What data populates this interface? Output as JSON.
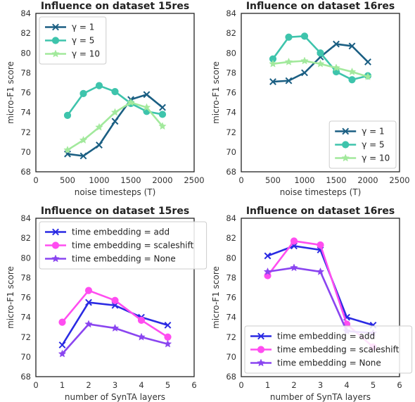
{
  "chart_data": [
    {
      "type": "line",
      "title": "Influence on dataset 15res",
      "xlabel": "noise timesteps (T)",
      "ylabel": "micro-F1 score",
      "xlim": [
        0,
        2500
      ],
      "ylim": [
        68,
        84
      ],
      "xticks": [
        0,
        500,
        1000,
        1500,
        2000,
        2500
      ],
      "yticks": [
        68,
        70,
        72,
        74,
        76,
        78,
        80,
        82,
        84
      ],
      "legend_position": "upper left",
      "grid": false,
      "series": [
        {
          "name": "γ = 1",
          "color": "#1b5f83",
          "marker": "x",
          "x": [
            500,
            750,
            1000,
            1250,
            1500,
            1750,
            2000
          ],
          "y": [
            69.8,
            69.6,
            70.7,
            73.1,
            75.3,
            75.8,
            74.5
          ]
        },
        {
          "name": "γ = 5",
          "color": "#3ec4ac",
          "marker": "o",
          "x": [
            500,
            750,
            1000,
            1250,
            1500,
            1750,
            2000
          ],
          "y": [
            73.7,
            75.9,
            76.7,
            76.1,
            74.9,
            74.1,
            73.8
          ]
        },
        {
          "name": "γ = 10",
          "color": "#a2e99c",
          "marker": "star",
          "x": [
            500,
            750,
            1000,
            1250,
            1500,
            1750,
            2000
          ],
          "y": [
            70.2,
            71.2,
            72.5,
            74.0,
            75.0,
            74.5,
            72.6
          ]
        }
      ]
    },
    {
      "type": "line",
      "title": "Influence on dataset 16res",
      "xlabel": "noise timesteps (T)",
      "ylabel": "micro-F1 score",
      "xlim": [
        0,
        2500
      ],
      "ylim": [
        68,
        84
      ],
      "xticks": [
        0,
        500,
        1000,
        1500,
        2000,
        2500
      ],
      "yticks": [
        68,
        70,
        72,
        74,
        76,
        78,
        80,
        82,
        84
      ],
      "legend_position": "lower right",
      "grid": false,
      "series": [
        {
          "name": "γ = 1",
          "color": "#1b5f83",
          "marker": "x",
          "x": [
            500,
            750,
            1000,
            1250,
            1500,
            1750,
            2000
          ],
          "y": [
            77.1,
            77.2,
            78.0,
            79.6,
            80.9,
            80.7,
            79.1
          ]
        },
        {
          "name": "γ = 5",
          "color": "#3ec4ac",
          "marker": "o",
          "x": [
            500,
            750,
            1000,
            1250,
            1500,
            1750,
            2000
          ],
          "y": [
            79.4,
            81.6,
            81.7,
            80.0,
            78.1,
            77.3,
            77.7
          ]
        },
        {
          "name": "γ = 10",
          "color": "#a2e99c",
          "marker": "star",
          "x": [
            500,
            750,
            1000,
            1250,
            1500,
            1750,
            2000
          ],
          "y": [
            78.9,
            79.1,
            79.2,
            78.9,
            78.5,
            78.1,
            77.6
          ]
        }
      ]
    },
    {
      "type": "line",
      "title": "Influence on dataset 15res",
      "xlabel": "number of SynTA layers",
      "ylabel": "micro-F1 score",
      "xlim": [
        0,
        6
      ],
      "ylim": [
        68,
        84
      ],
      "xticks": [
        0,
        1,
        2,
        3,
        4,
        5,
        6
      ],
      "yticks": [
        68,
        70,
        72,
        74,
        76,
        78,
        80,
        82,
        84
      ],
      "legend_position": "upper left",
      "grid": false,
      "series": [
        {
          "name": "time embedding = add",
          "color": "#2a2ae3",
          "marker": "x",
          "x": [
            1,
            2,
            3,
            4,
            5
          ],
          "y": [
            71.2,
            75.5,
            75.2,
            74.0,
            73.2
          ]
        },
        {
          "name": "time embedding = scaleshift",
          "color": "#ff4df0",
          "marker": "o",
          "x": [
            1,
            2,
            3,
            4,
            5
          ],
          "y": [
            73.5,
            76.7,
            75.7,
            73.7,
            72.0
          ]
        },
        {
          "name": "time embedding = None",
          "color": "#8a45f0",
          "marker": "star",
          "x": [
            1,
            2,
            3,
            4,
            5
          ],
          "y": [
            70.3,
            73.3,
            72.9,
            72.0,
            71.3
          ]
        }
      ]
    },
    {
      "type": "line",
      "title": "Influence on dataset 16res",
      "xlabel": "number of SynTA layers",
      "ylabel": "micro-F1 score",
      "xlim": [
        0,
        6
      ],
      "ylim": [
        68,
        84
      ],
      "xticks": [
        0,
        1,
        2,
        3,
        4,
        5,
        6
      ],
      "yticks": [
        68,
        70,
        72,
        74,
        76,
        78,
        80,
        82,
        84
      ],
      "legend_position": "lower left",
      "grid": false,
      "series": [
        {
          "name": "time embedding = add",
          "color": "#2a2ae3",
          "marker": "x",
          "x": [
            1,
            2,
            3,
            4,
            5
          ],
          "y": [
            80.2,
            81.2,
            80.8,
            74.0,
            73.2
          ]
        },
        {
          "name": "time embedding = scaleshift",
          "color": "#ff4df0",
          "marker": "o",
          "x": [
            1,
            2,
            3,
            4,
            5
          ],
          "y": [
            78.2,
            81.7,
            81.3,
            73.3,
            71.0
          ]
        },
        {
          "name": "time embedding = None",
          "color": "#8a45f0",
          "marker": "star",
          "x": [
            1,
            2,
            3,
            4,
            5
          ],
          "y": [
            78.6,
            79.0,
            78.6,
            72.6,
            72.4
          ]
        }
      ]
    }
  ]
}
